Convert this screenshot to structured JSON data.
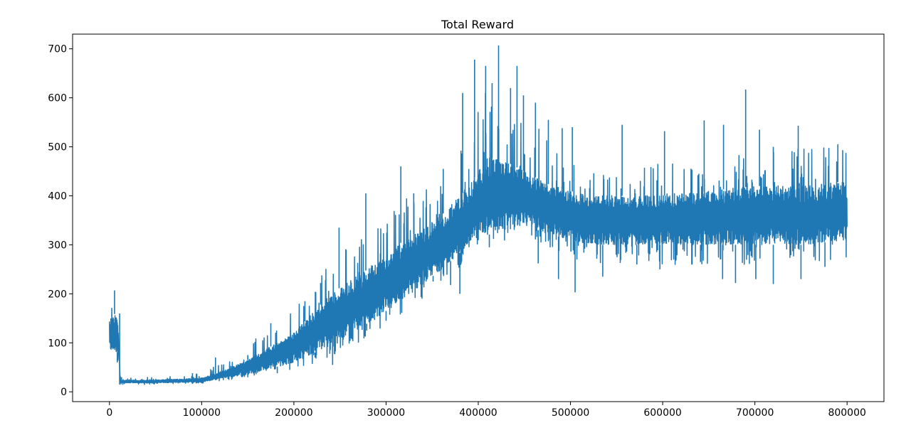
{
  "chart_data": {
    "type": "line",
    "title": "Total Reward",
    "xlabel": "",
    "ylabel": "",
    "xlim": [
      -40000,
      840000
    ],
    "ylim": [
      -20,
      730
    ],
    "x_ticks": [
      0,
      100000,
      200000,
      300000,
      400000,
      500000,
      600000,
      700000,
      800000
    ],
    "y_ticks": [
      0,
      100,
      200,
      300,
      400,
      500,
      600,
      700
    ],
    "grid": false,
    "legend": "none",
    "line_color": "#1f77b4",
    "series": [
      {
        "envelope": {
          "description_x": "x",
          "x": [
            0,
            5000,
            9000,
            12000,
            50000,
            100000,
            120000,
            150000,
            200000,
            240000,
            280000,
            320000,
            360000,
            390000,
            410000,
            430000,
            450000,
            480000,
            520000,
            560000,
            600000,
            650000,
            700000,
            750000,
            800000
          ],
          "lower": [
            70,
            75,
            60,
            15,
            15,
            17,
            22,
            30,
            45,
            70,
            110,
            160,
            220,
            270,
            300,
            310,
            320,
            290,
            260,
            260,
            260,
            260,
            260,
            260,
            270
          ],
          "upper": [
            170,
            205,
            160,
            28,
            30,
            38,
            60,
            95,
            180,
            280,
            330,
            400,
            440,
            520,
            640,
            600,
            560,
            520,
            470,
            460,
            470,
            480,
            490,
            500,
            500
          ],
          "low_band": [
            80,
            85,
            80,
            18,
            18,
            20,
            26,
            36,
            60,
            95,
            140,
            190,
            250,
            300,
            320,
            330,
            340,
            320,
            300,
            300,
            300,
            300,
            300,
            300,
            310
          ],
          "high_band": [
            150,
            160,
            150,
            24,
            24,
            28,
            40,
            65,
            120,
            200,
            250,
            310,
            360,
            420,
            480,
            470,
            450,
            420,
            400,
            400,
            400,
            410,
            420,
            420,
            430
          ]
        },
        "spikes_high": [
          [
            5500,
            207
          ],
          [
            13000,
            30
          ],
          [
            90000,
            38
          ],
          [
            115000,
            70
          ],
          [
            150000,
            75
          ],
          [
            175000,
            140
          ],
          [
            212000,
            185
          ],
          [
            229000,
            222
          ],
          [
            249000,
            335
          ],
          [
            278000,
            405
          ],
          [
            316000,
            460
          ],
          [
            330000,
            405
          ],
          [
            362000,
            455
          ],
          [
            383000,
            610
          ],
          [
            396000,
            678
          ],
          [
            408000,
            665
          ],
          [
            415000,
            630
          ],
          [
            422000,
            707
          ],
          [
            435000,
            620
          ],
          [
            442000,
            665
          ],
          [
            449000,
            605
          ],
          [
            462000,
            590
          ],
          [
            476000,
            555
          ],
          [
            491000,
            538
          ],
          [
            502000,
            540
          ],
          [
            556000,
            545
          ],
          [
            602000,
            532
          ],
          [
            645000,
            554
          ],
          [
            666000,
            545
          ],
          [
            690000,
            617
          ],
          [
            705000,
            535
          ],
          [
            720000,
            500
          ],
          [
            747000,
            543
          ],
          [
            790000,
            505
          ]
        ],
        "spikes_low": [
          [
            8500,
            60
          ],
          [
            182000,
            38
          ],
          [
            223000,
            70
          ],
          [
            242000,
            55
          ],
          [
            279000,
            125
          ],
          [
            300000,
            145
          ],
          [
            351000,
            225
          ],
          [
            370000,
            218
          ],
          [
            380000,
            200
          ],
          [
            412000,
            295
          ],
          [
            465000,
            262
          ],
          [
            487000,
            230
          ],
          [
            505000,
            203
          ],
          [
            535000,
            235
          ],
          [
            572000,
            260
          ],
          [
            597000,
            250
          ],
          [
            641000,
            265
          ],
          [
            665000,
            230
          ],
          [
            679000,
            222
          ],
          [
            701000,
            230
          ],
          [
            720000,
            220
          ],
          [
            750000,
            230
          ],
          [
            776000,
            255
          ]
        ]
      }
    ]
  }
}
